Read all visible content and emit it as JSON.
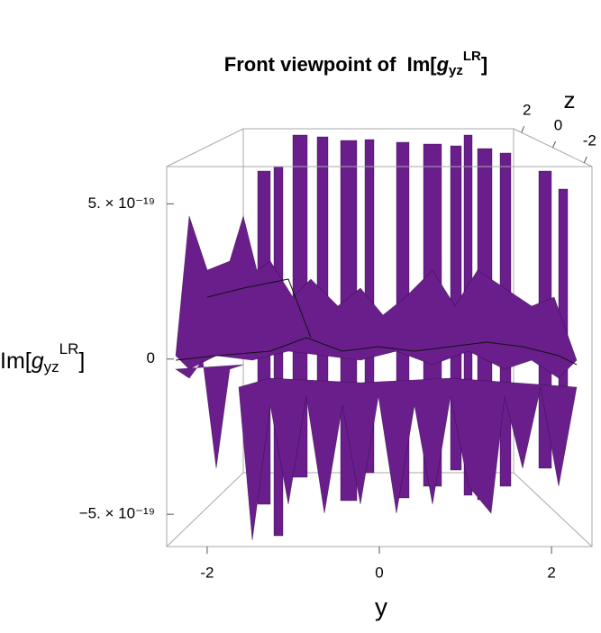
{
  "chart_data": {
    "type": "surface3d",
    "title": {
      "text": "Front viewpoint of",
      "func": "Im[",
      "symbol": "g",
      "sub": "yz",
      "sup": "LR",
      "close": "]"
    },
    "x_label": "y",
    "y_label": "z",
    "z_label": {
      "func": "Im[",
      "symbol": "g",
      "sub": "yz",
      "sup": "LR",
      "close": "]"
    },
    "color": "#6a1e8c",
    "xlim": [
      -2.47,
      2.47
    ],
    "xticks": [
      -2,
      0,
      2
    ],
    "ylim": [
      2.5,
      -2.5
    ],
    "yticks": [
      2,
      0,
      -2
    ],
    "zlim": [
      -6.04e-19,
      6.2e-19
    ],
    "zticks": [
      {
        "value": 5e-19,
        "label": "5. × 10⁻¹⁹"
      },
      0,
      {
        "value": -5e-19,
        "label": "−5. × 10⁻¹⁹"
      }
    ]
  }
}
